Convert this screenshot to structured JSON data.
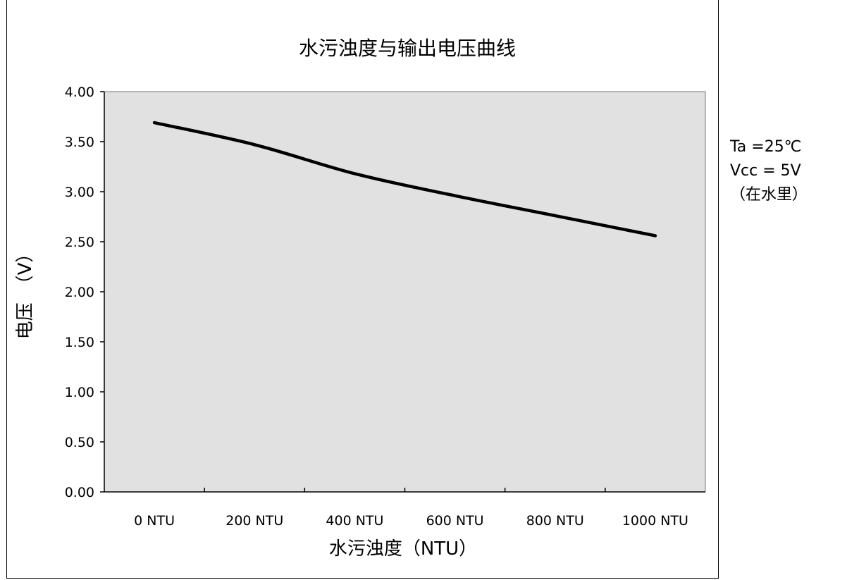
{
  "chart_data": {
    "type": "line",
    "title": "水污浊度与输出电压曲线",
    "xlabel": "水污浊度（NTU）",
    "ylabel": "电压　（V）",
    "categories": [
      "0 NTU",
      "200 NTU",
      "400 NTU",
      "600 NTU",
      "800 NTU",
      "1000 NTU"
    ],
    "ylim": [
      0,
      4
    ],
    "y_ticks": [
      "0.00",
      "0.50",
      "1.00",
      "1.50",
      "2.00",
      "2.50",
      "3.00",
      "3.50",
      "4.00"
    ],
    "series": [
      {
        "values": [
          3.69,
          3.47,
          3.18,
          2.96,
          2.76,
          2.56
        ]
      }
    ],
    "grid": false,
    "plot_background": "#e1e1e1",
    "line_color": "#000000"
  },
  "notes": {
    "temperature": "Ta =25℃",
    "vcc": "Vcc = 5V",
    "medium": "（在水里）"
  }
}
